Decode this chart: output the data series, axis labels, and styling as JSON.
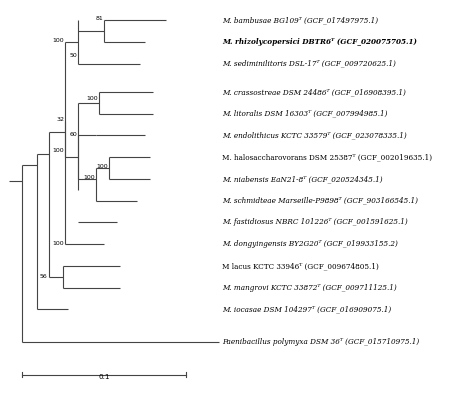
{
  "taxa": [
    {
      "name": "M. bambusae BG109ᵀ (GCF_017497975.1)",
      "y": 0,
      "bold": false,
      "italic": true
    },
    {
      "name": "M. rhizolycopersici DBTR6ᵀ (GCF_020075705.1)",
      "y": 1,
      "bold": true,
      "italic": true
    },
    {
      "name": "M. sediminilitoris DSL-17ᵀ (GCF_009720625.1)",
      "y": 2,
      "bold": false,
      "italic": true
    },
    {
      "name": "M. crassostreae DSM 24486ᵀ (GCF_016908395.1)",
      "y": 3.3,
      "bold": false,
      "italic": true
    },
    {
      "name": "M. litoralis DSM 16303ᵀ (GCF_007994985.1)",
      "y": 4.3,
      "bold": false,
      "italic": true
    },
    {
      "name": "M. endolithicus KCTC 33579ᵀ (GCF_023078335.1)",
      "y": 5.3,
      "bold": false,
      "italic": true
    },
    {
      "name": "M. halosaccharovorans DSM 25387ᵀ (GCF_002019635.1)",
      "y": 6.3,
      "bold": false,
      "italic": false
    },
    {
      "name": "M. niabensis EaN21-8ᵀ (GCF_020524345.1)",
      "y": 7.3,
      "bold": false,
      "italic": true
    },
    {
      "name": "M. schmidteae Marseille-P9898ᵀ (GCF_903166545.1)",
      "y": 8.3,
      "bold": false,
      "italic": true
    },
    {
      "name": "M. fastidiosus NBRC 101226ᵀ (GCF_001591625.1)",
      "y": 9.3,
      "bold": false,
      "italic": true
    },
    {
      "name": "M. dongyingensis BY2G20ᵀ (GCF_019933155.2)",
      "y": 10.3,
      "bold": false,
      "italic": true
    },
    {
      "name": "M lacus KCTC 33946ᵀ (GCF_009674805.1)",
      "y": 11.3,
      "bold": false,
      "italic": false
    },
    {
      "name": "M. mangrovi KCTC 33872ᵀ (GCF_009711125.1)",
      "y": 12.3,
      "bold": false,
      "italic": true
    },
    {
      "name": "M. iocasae DSM 104297ᵀ (GCF_016909075.1)",
      "y": 13.3,
      "bold": false,
      "italic": true
    },
    {
      "name": "Paenibacillus polymyxa DSM 36ᵀ (GCF_015710975.1)",
      "y": 14.8,
      "bold": false,
      "italic": true
    }
  ],
  "line_color": "#444444",
  "text_color": "#000000",
  "bg_color": "#ffffff",
  "fontsize": 5.2,
  "bootstrap_fontsize": 4.5,
  "scale_bar_label": "0.1"
}
